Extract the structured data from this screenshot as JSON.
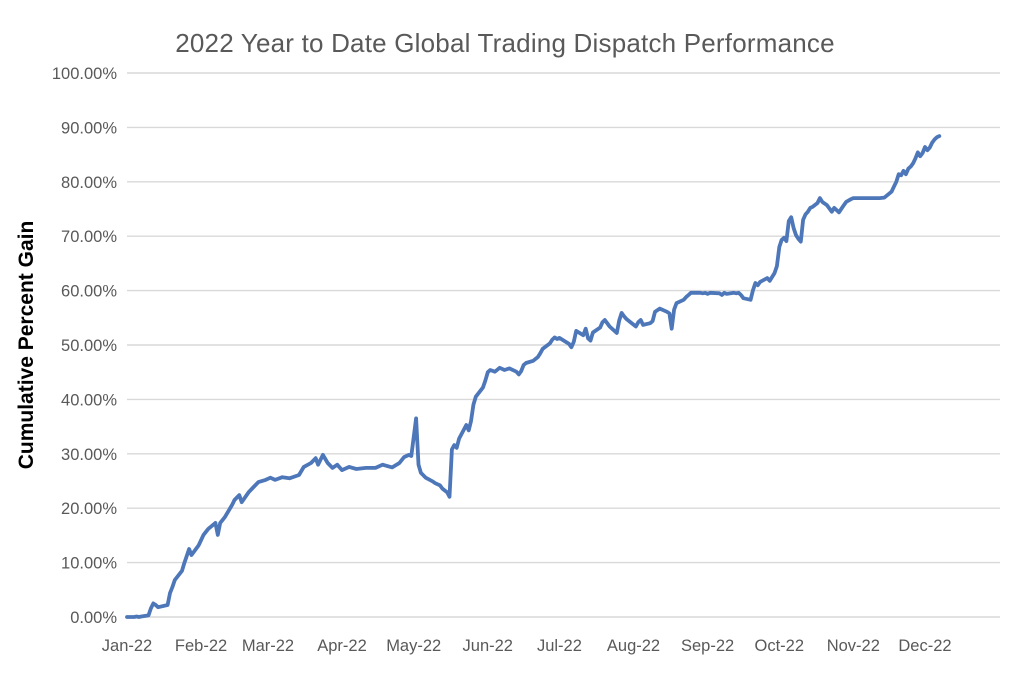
{
  "chart_data": {
    "type": "line",
    "title": "2022 Year to Date Global Trading Dispatch Performance",
    "ylabel": "Cumulative Percent Gain",
    "xlabel": "",
    "legend": "none",
    "grid": "horizontal",
    "ylim": [
      0,
      100
    ],
    "xlim_days": [
      1,
      366
    ],
    "y_ticks": [
      {
        "value": 0,
        "label": "0.00%"
      },
      {
        "value": 10,
        "label": "10.00%"
      },
      {
        "value": 20,
        "label": "20.00%"
      },
      {
        "value": 30,
        "label": "30.00%"
      },
      {
        "value": 40,
        "label": "40.00%"
      },
      {
        "value": 50,
        "label": "50.00%"
      },
      {
        "value": 60,
        "label": "60.00%"
      },
      {
        "value": 70,
        "label": "70.00%"
      },
      {
        "value": 80,
        "label": "80.00%"
      },
      {
        "value": 90,
        "label": "90.00%"
      },
      {
        "value": 100,
        "label": "100.00%"
      }
    ],
    "x_ticks": [
      {
        "day": 1,
        "label": "Jan-22"
      },
      {
        "day": 32,
        "label": "Feb-22"
      },
      {
        "day": 60,
        "label": "Mar-22"
      },
      {
        "day": 91,
        "label": "Apr-22"
      },
      {
        "day": 121,
        "label": "May-22"
      },
      {
        "day": 152,
        "label": "Jun-22"
      },
      {
        "day": 182,
        "label": "Jul-22"
      },
      {
        "day": 213,
        "label": "Aug-22"
      },
      {
        "day": 244,
        "label": "Sep-22"
      },
      {
        "day": 274,
        "label": "Oct-22"
      },
      {
        "day": 305,
        "label": "Nov-22"
      },
      {
        "day": 335,
        "label": "Dec-22"
      }
    ],
    "colors": {
      "line": "#4d77b9",
      "gridline": "#d9d9d9",
      "tick_text": "#595959",
      "title_text": "#595959",
      "axis_title_text": "#000000",
      "background": "#ffffff"
    },
    "series": [
      {
        "name": "Cumulative percent gain (day-of-year, %)",
        "color": "#4d77b9",
        "points": [
          [
            1,
            0
          ],
          [
            4,
            0
          ],
          [
            5,
            0.1
          ],
          [
            6,
            0
          ],
          [
            7,
            0.1
          ],
          [
            10,
            0.3
          ],
          [
            11,
            1.6
          ],
          [
            12,
            2.5
          ],
          [
            13,
            2.2
          ],
          [
            14,
            1.8
          ],
          [
            18,
            2.2
          ],
          [
            19,
            4.4
          ],
          [
            20,
            5.5
          ],
          [
            21,
            6.8
          ],
          [
            24,
            8.5
          ],
          [
            25,
            9.9
          ],
          [
            26,
            11.2
          ],
          [
            27,
            12.5
          ],
          [
            28,
            11.4
          ],
          [
            31,
            13.2
          ],
          [
            33,
            15.1
          ],
          [
            35,
            16.2
          ],
          [
            38,
            17.3
          ],
          [
            39,
            15.1
          ],
          [
            40,
            17.3
          ],
          [
            42,
            18.4
          ],
          [
            45,
            20.6
          ],
          [
            46,
            21.5
          ],
          [
            48,
            22.4
          ],
          [
            49,
            21.1
          ],
          [
            52,
            23.0
          ],
          [
            54,
            23.9
          ],
          [
            56,
            24.8
          ],
          [
            59,
            25.2
          ],
          [
            61,
            25.6
          ],
          [
            63,
            25.2
          ],
          [
            66,
            25.7
          ],
          [
            69,
            25.5
          ],
          [
            73,
            26.1
          ],
          [
            75,
            27.6
          ],
          [
            78,
            28.3
          ],
          [
            80,
            29.2
          ],
          [
            81,
            28.0
          ],
          [
            82,
            28.9
          ],
          [
            83,
            29.8
          ],
          [
            85,
            28.3
          ],
          [
            87,
            27.4
          ],
          [
            89,
            28.0
          ],
          [
            91,
            27.0
          ],
          [
            94,
            27.6
          ],
          [
            97,
            27.2
          ],
          [
            101,
            27.4
          ],
          [
            105,
            27.4
          ],
          [
            108,
            28.0
          ],
          [
            112,
            27.5
          ],
          [
            115,
            28.3
          ],
          [
            117,
            29.4
          ],
          [
            119,
            29.8
          ],
          [
            120,
            29.6
          ],
          [
            122,
            36.5
          ],
          [
            123,
            28.0
          ],
          [
            124,
            26.5
          ],
          [
            126,
            25.6
          ],
          [
            129,
            24.9
          ],
          [
            130,
            24.6
          ],
          [
            132,
            24.2
          ],
          [
            133,
            23.6
          ],
          [
            135,
            22.9
          ],
          [
            136,
            22.1
          ],
          [
            137,
            30.8
          ],
          [
            138,
            31.6
          ],
          [
            139,
            31.1
          ],
          [
            140,
            32.8
          ],
          [
            143,
            35.3
          ],
          [
            144,
            34.3
          ],
          [
            145,
            36.0
          ],
          [
            146,
            39.0
          ],
          [
            147,
            40.5
          ],
          [
            150,
            42.2
          ],
          [
            151,
            43.5
          ],
          [
            152,
            45.0
          ],
          [
            153,
            45.4
          ],
          [
            155,
            45.1
          ],
          [
            157,
            45.8
          ],
          [
            159,
            45.4
          ],
          [
            161,
            45.7
          ],
          [
            164,
            45.1
          ],
          [
            165,
            44.6
          ],
          [
            166,
            45.2
          ],
          [
            167,
            46.3
          ],
          [
            168,
            46.7
          ],
          [
            171,
            47.1
          ],
          [
            173,
            47.8
          ],
          [
            174,
            48.5
          ],
          [
            175,
            49.3
          ],
          [
            178,
            50.3
          ],
          [
            179,
            51.0
          ],
          [
            180,
            51.4
          ],
          [
            181,
            51.1
          ],
          [
            182,
            51.3
          ],
          [
            186,
            50.2
          ],
          [
            187,
            49.6
          ],
          [
            188,
            50.6
          ],
          [
            189,
            52.6
          ],
          [
            192,
            51.8
          ],
          [
            193,
            53.0
          ],
          [
            194,
            51.2
          ],
          [
            195,
            50.8
          ],
          [
            196,
            52.3
          ],
          [
            199,
            53.2
          ],
          [
            200,
            54.2
          ],
          [
            201,
            54.6
          ],
          [
            202,
            54.0
          ],
          [
            203,
            53.4
          ],
          [
            206,
            52.2
          ],
          [
            207,
            54.5
          ],
          [
            208,
            55.9
          ],
          [
            209,
            55.3
          ],
          [
            210,
            54.8
          ],
          [
            212,
            54.1
          ],
          [
            214,
            53.4
          ],
          [
            215,
            54.2
          ],
          [
            216,
            54.6
          ],
          [
            217,
            53.7
          ],
          [
            220,
            54.0
          ],
          [
            221,
            54.4
          ],
          [
            222,
            56.1
          ],
          [
            223,
            56.4
          ],
          [
            224,
            56.7
          ],
          [
            227,
            56.1
          ],
          [
            228,
            55.8
          ],
          [
            229,
            53.0
          ],
          [
            230,
            56.5
          ],
          [
            231,
            57.7
          ],
          [
            234,
            58.3
          ],
          [
            235,
            58.8
          ],
          [
            236,
            59.2
          ],
          [
            237,
            59.6
          ],
          [
            241,
            59.6
          ],
          [
            242,
            59.5
          ],
          [
            243,
            59.6
          ],
          [
            244,
            59.4
          ],
          [
            245,
            59.6
          ],
          [
            249,
            59.5
          ],
          [
            250,
            59.2
          ],
          [
            251,
            59.6
          ],
          [
            252,
            59.4
          ],
          [
            255,
            59.6
          ],
          [
            256,
            59.5
          ],
          [
            257,
            59.6
          ],
          [
            258,
            59.2
          ],
          [
            259,
            58.6
          ],
          [
            262,
            58.3
          ],
          [
            263,
            60.1
          ],
          [
            264,
            61.4
          ],
          [
            265,
            61.0
          ],
          [
            266,
            61.6
          ],
          [
            269,
            62.3
          ],
          [
            270,
            61.8
          ],
          [
            271,
            62.5
          ],
          [
            272,
            63.2
          ],
          [
            273,
            64.5
          ],
          [
            274,
            68.0
          ],
          [
            275,
            69.3
          ],
          [
            276,
            69.7
          ],
          [
            277,
            69.1
          ],
          [
            278,
            72.8
          ],
          [
            279,
            73.5
          ],
          [
            280,
            71.5
          ],
          [
            281,
            70.2
          ],
          [
            282,
            69.5
          ],
          [
            283,
            69.0
          ],
          [
            284,
            73.0
          ],
          [
            285,
            74.0
          ],
          [
            286,
            74.5
          ],
          [
            287,
            75.2
          ],
          [
            288,
            75.4
          ],
          [
            290,
            76.1
          ],
          [
            291,
            77.0
          ],
          [
            292,
            76.3
          ],
          [
            294,
            75.7
          ],
          [
            296,
            74.5
          ],
          [
            297,
            75.2
          ],
          [
            299,
            74.4
          ],
          [
            301,
            75.7
          ],
          [
            302,
            76.3
          ],
          [
            304,
            76.8
          ],
          [
            305,
            77.0
          ],
          [
            308,
            77.0
          ],
          [
            311,
            77.0
          ],
          [
            314,
            77.0
          ],
          [
            316,
            77.0
          ],
          [
            318,
            77.1
          ],
          [
            321,
            78.2
          ],
          [
            322,
            79.1
          ],
          [
            323,
            80.0
          ],
          [
            324,
            81.4
          ],
          [
            325,
            81.2
          ],
          [
            326,
            82.0
          ],
          [
            327,
            81.4
          ],
          [
            328,
            82.4
          ],
          [
            329,
            82.8
          ],
          [
            330,
            83.4
          ],
          [
            331,
            84.3
          ],
          [
            332,
            85.4
          ],
          [
            333,
            84.7
          ],
          [
            334,
            85.3
          ],
          [
            335,
            86.4
          ],
          [
            336,
            85.8
          ],
          [
            337,
            86.3
          ],
          [
            338,
            87.2
          ],
          [
            339,
            87.8
          ],
          [
            340,
            88.2
          ],
          [
            341,
            88.4
          ]
        ]
      }
    ]
  }
}
